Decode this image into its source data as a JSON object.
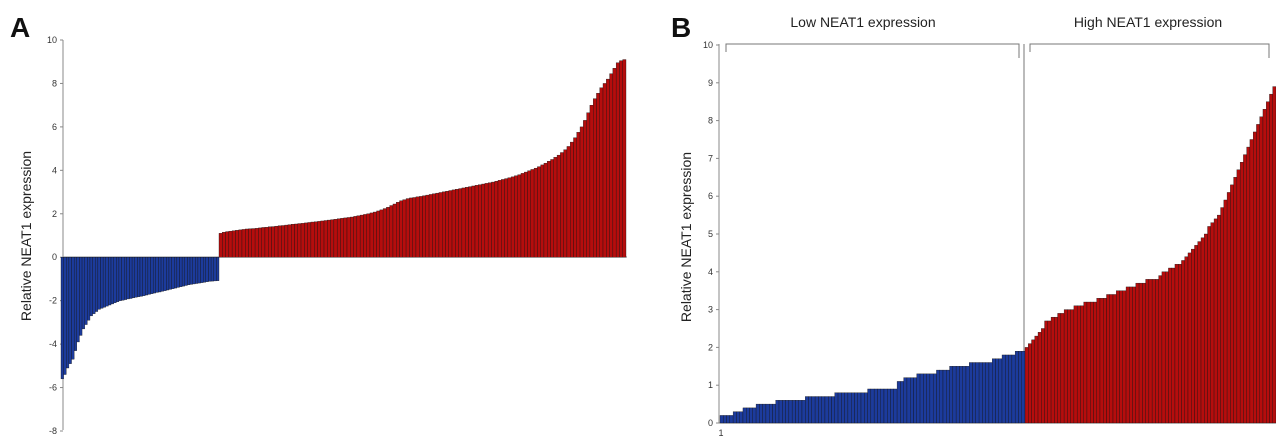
{
  "colors": {
    "low": "#1c3b9c",
    "high": "#b50d0d",
    "bar_edge": "#111111"
  },
  "chart_data": [
    {
      "panel": "A",
      "type": "bar",
      "ylabel": "Relative  NEAT1 expression",
      "ylim": [
        -8,
        10
      ],
      "yticks": [
        10,
        8,
        6,
        4,
        2,
        0,
        -2,
        -4,
        -6,
        -8
      ],
      "grid": false,
      "low_values": [
        -5.6,
        -5.4,
        -5.1,
        -4.9,
        -4.7,
        -4.3,
        -3.9,
        -3.6,
        -3.3,
        -3.1,
        -2.9,
        -2.7,
        -2.6,
        -2.5,
        -2.4,
        -2.35,
        -2.3,
        -2.25,
        -2.2,
        -2.15,
        -2.1,
        -2.05,
        -2.0,
        -1.98,
        -1.95,
        -1.92,
        -1.9,
        -1.87,
        -1.84,
        -1.82,
        -1.8,
        -1.77,
        -1.74,
        -1.71,
        -1.68,
        -1.65,
        -1.62,
        -1.6,
        -1.57,
        -1.54,
        -1.51,
        -1.48,
        -1.45,
        -1.42,
        -1.39,
        -1.36,
        -1.33,
        -1.3,
        -1.27,
        -1.25,
        -1.23,
        -1.21,
        -1.19,
        -1.17,
        -1.15,
        -1.13,
        -1.11,
        -1.1,
        -1.09,
        -1.08
      ],
      "high_values": [
        1.1,
        1.15,
        1.18,
        1.2,
        1.22,
        1.24,
        1.26,
        1.28,
        1.3,
        1.31,
        1.32,
        1.33,
        1.35,
        1.37,
        1.38,
        1.4,
        1.41,
        1.43,
        1.45,
        1.46,
        1.48,
        1.5,
        1.52,
        1.53,
        1.55,
        1.56,
        1.58,
        1.6,
        1.62,
        1.63,
        1.65,
        1.67,
        1.69,
        1.71,
        1.73,
        1.75,
        1.77,
        1.79,
        1.81,
        1.83,
        1.85,
        1.88,
        1.91,
        1.94,
        1.97,
        2.0,
        2.04,
        2.08,
        2.13,
        2.18,
        2.24,
        2.3,
        2.38,
        2.45,
        2.53,
        2.6,
        2.65,
        2.7,
        2.73,
        2.75,
        2.78,
        2.8,
        2.83,
        2.86,
        2.89,
        2.92,
        2.95,
        2.98,
        3.01,
        3.04,
        3.07,
        3.1,
        3.13,
        3.16,
        3.19,
        3.22,
        3.25,
        3.28,
        3.31,
        3.34,
        3.37,
        3.4,
        3.43,
        3.46,
        3.5,
        3.54,
        3.58,
        3.62,
        3.66,
        3.7,
        3.75,
        3.8,
        3.86,
        3.92,
        3.98,
        4.04,
        4.1,
        4.17,
        4.25,
        4.33,
        4.42,
        4.5,
        4.6,
        4.7,
        4.82,
        4.95,
        5.1,
        5.3,
        5.5,
        5.75,
        6.0,
        6.3,
        6.65,
        7.0,
        7.3,
        7.55,
        7.8,
        8.0,
        8.2,
        8.45,
        8.7,
        8.95,
        9.05,
        9.1
      ]
    },
    {
      "panel": "B",
      "type": "bar",
      "ylabel": "Relative  NEAT1 expression",
      "ylim": [
        0,
        10
      ],
      "yticks": [
        10,
        9,
        8,
        7,
        6,
        5,
        4,
        3,
        2,
        1,
        0
      ],
      "x_first_tick": "1",
      "grid": false,
      "groups": [
        "Low  NEAT1 expression",
        "High  NEAT1 expression"
      ],
      "low_values": [
        0.2,
        0.2,
        0.2,
        0.2,
        0.3,
        0.3,
        0.3,
        0.4,
        0.4,
        0.4,
        0.4,
        0.5,
        0.5,
        0.5,
        0.5,
        0.5,
        0.5,
        0.6,
        0.6,
        0.6,
        0.6,
        0.6,
        0.6,
        0.6,
        0.6,
        0.6,
        0.7,
        0.7,
        0.7,
        0.7,
        0.7,
        0.7,
        0.7,
        0.7,
        0.7,
        0.8,
        0.8,
        0.8,
        0.8,
        0.8,
        0.8,
        0.8,
        0.8,
        0.8,
        0.8,
        0.9,
        0.9,
        0.9,
        0.9,
        0.9,
        0.9,
        0.9,
        0.9,
        0.9,
        1.1,
        1.1,
        1.2,
        1.2,
        1.2,
        1.2,
        1.3,
        1.3,
        1.3,
        1.3,
        1.3,
        1.3,
        1.4,
        1.4,
        1.4,
        1.4,
        1.5,
        1.5,
        1.5,
        1.5,
        1.5,
        1.5,
        1.6,
        1.6,
        1.6,
        1.6,
        1.6,
        1.6,
        1.6,
        1.7,
        1.7,
        1.7,
        1.8,
        1.8,
        1.8,
        1.8,
        1.9,
        1.9,
        1.9
      ],
      "high_values": [
        2.0,
        2.1,
        2.2,
        2.3,
        2.4,
        2.5,
        2.7,
        2.7,
        2.8,
        2.8,
        2.9,
        2.9,
        3.0,
        3.0,
        3.0,
        3.1,
        3.1,
        3.1,
        3.2,
        3.2,
        3.2,
        3.2,
        3.3,
        3.3,
        3.3,
        3.4,
        3.4,
        3.4,
        3.5,
        3.5,
        3.5,
        3.6,
        3.6,
        3.6,
        3.7,
        3.7,
        3.7,
        3.8,
        3.8,
        3.8,
        3.8,
        3.9,
        4.0,
        4.0,
        4.1,
        4.1,
        4.2,
        4.2,
        4.3,
        4.4,
        4.5,
        4.6,
        4.7,
        4.8,
        4.9,
        5.0,
        5.2,
        5.3,
        5.4,
        5.5,
        5.7,
        5.9,
        6.1,
        6.3,
        6.5,
        6.7,
        6.9,
        7.1,
        7.3,
        7.5,
        7.7,
        7.9,
        8.1,
        8.3,
        8.5,
        8.7,
        8.9
      ]
    }
  ]
}
